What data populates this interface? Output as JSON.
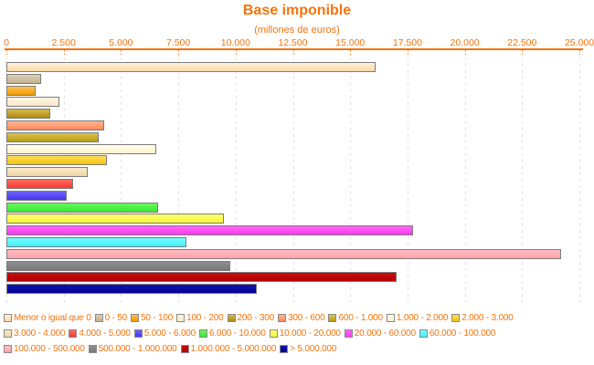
{
  "title": "Base imponible",
  "subtitle": "(millones de euros)",
  "colors": {
    "text": "#f4740c",
    "axis": "#f4740c",
    "grid": "#e2e2e2",
    "bar_border": "#7c7c7c",
    "swatch_border": "#8a8a8a",
    "background": "#ffffff"
  },
  "chart_data": {
    "type": "bar",
    "orientation": "horizontal",
    "title": "Base imponible",
    "subtitle": "(millones de euros)",
    "xlabel": "",
    "ylabel": "",
    "xlim": [
      0,
      25000
    ],
    "x_ticks": [
      "0",
      "2.500",
      "5.000",
      "7.500",
      "10.000",
      "12.500",
      "15.000",
      "17.500",
      "20.000",
      "22.500",
      "25.000"
    ],
    "grid": "vertical-dashed",
    "legend_position": "bottom",
    "bars": [
      {
        "label": "Menor o igual que 0",
        "value": 16100,
        "color_light": "#fff2de",
        "color": "#ffd8a4"
      },
      {
        "label": "0 - 50",
        "value": 1510,
        "color_light": "#dbcfb8",
        "color": "#c3b18e"
      },
      {
        "label": "50 - 100",
        "value": 1265,
        "color_light": "#ffc055",
        "color": "#f29900"
      },
      {
        "label": "100 - 200",
        "value": 2300,
        "color_light": "#fff6e4",
        "color": "#f9e7c4"
      },
      {
        "label": "200 - 300",
        "value": 1915,
        "color_light": "#d6b94c",
        "color": "#ad8b10"
      },
      {
        "label": "300 - 600",
        "value": 4270,
        "color_light": "#ffb491",
        "color": "#ff8a5f"
      },
      {
        "label": "600 - 1.000",
        "value": 4020,
        "color_light": "#dac455",
        "color": "#b89d15"
      },
      {
        "label": "1.000 - 2.000",
        "value": 6550,
        "color_light": "#fffeec",
        "color": "#fbf4ce"
      },
      {
        "label": "2.000 - 3.000",
        "value": 4390,
        "color_light": "#ffdd5c",
        "color": "#f3c307"
      },
      {
        "label": "3.000 - 4.000",
        "value": 3530,
        "color_light": "#faeacb",
        "color": "#edd5a3"
      },
      {
        "label": "4.000 - 5.000",
        "value": 2900,
        "color_light": "#ff6c62",
        "color": "#f83931"
      },
      {
        "label": "5.000 - 6.000",
        "value": 2650,
        "color_light": "#7064fa",
        "color": "#4336ef"
      },
      {
        "label": "6.000 - 10.000",
        "value": 6600,
        "color_light": "#68fa5c",
        "color": "#37e833"
      },
      {
        "label": "10.000 - 20.000",
        "value": 9500,
        "color_light": "#ffff70",
        "color": "#f5f53a"
      },
      {
        "label": "20.000 - 60.000",
        "value": 17760,
        "color_light": "#ff66fa",
        "color": "#f83bee"
      },
      {
        "label": "60.000 - 100.000",
        "value": 7855,
        "color_light": "#72ffff",
        "color": "#43edf8"
      },
      {
        "label": "100.000 - 500.000",
        "value": 24210,
        "color_light": "#ffbcc2",
        "color": "#ffa3ab"
      },
      {
        "label": "500.000 - 1.000.000",
        "value": 9775,
        "color_light": "#909090",
        "color": "#787878"
      },
      {
        "label": "1.000.000 - 5.000.000",
        "value": 17030,
        "color_light": "#cc0b0b",
        "color": "#ae0000"
      },
      {
        "label": "> 5.000.000",
        "value": 10930,
        "color_light": "#1616ac",
        "color": "#000093"
      }
    ]
  },
  "legend": {
    "rows": [
      [
        0,
        1,
        2,
        3,
        4,
        5,
        6,
        7,
        8
      ],
      [
        9,
        10,
        11,
        12,
        13,
        14,
        15
      ],
      [
        16,
        17,
        18,
        19
      ]
    ]
  }
}
